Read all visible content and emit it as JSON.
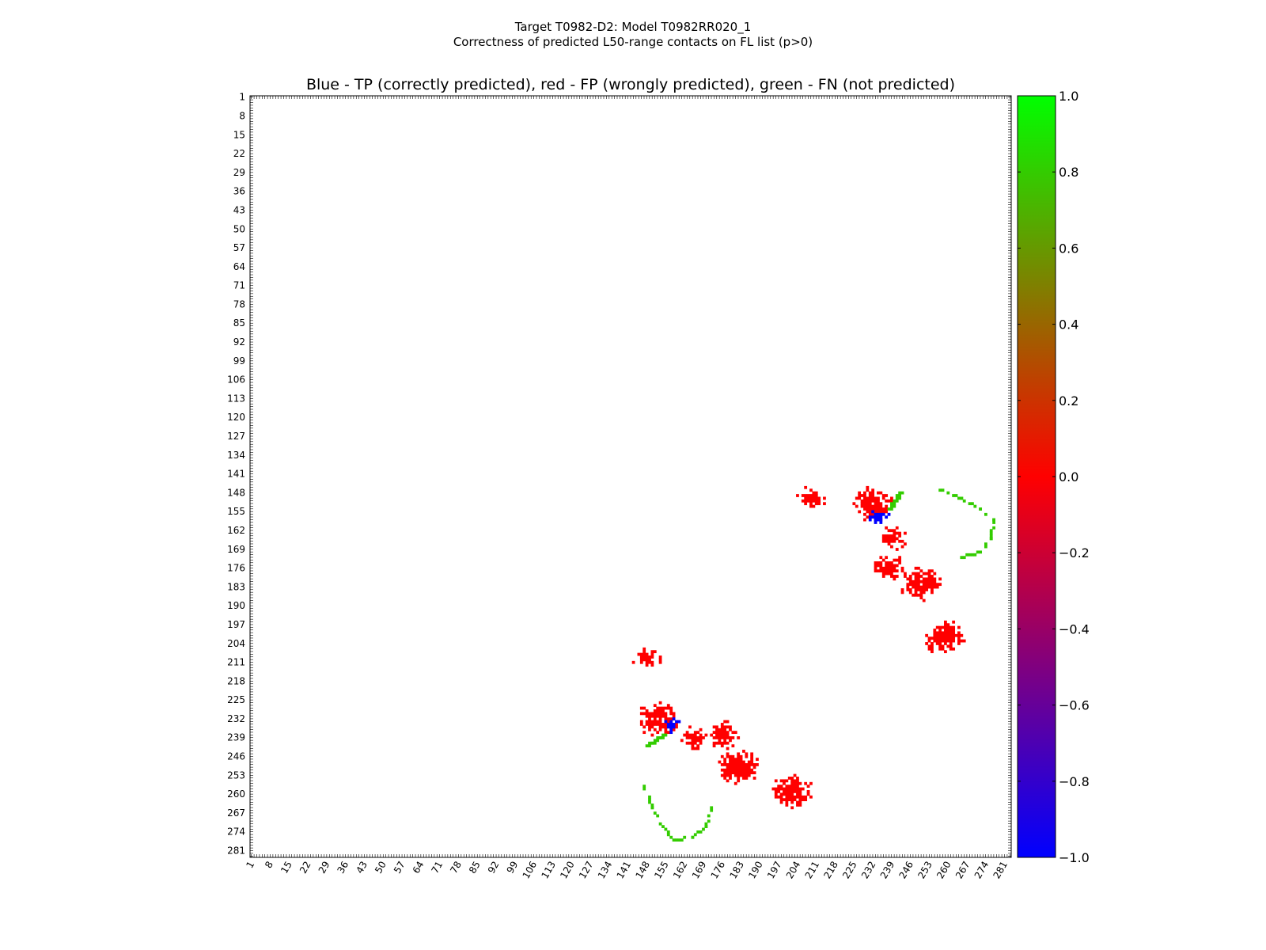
{
  "chart_data": {
    "type": "heatmap",
    "suptitle": [
      "Target T0982-D2: Model T0982RR020_1",
      "Correctness of predicted L50-range contacts on FL list (p>0)"
    ],
    "title": "Blue - TP (correctly predicted), red - FP (wrongly predicted), green - FN (not predicted)",
    "axis_range": [
      1,
      283
    ],
    "tick_labels": [
      "1",
      "8",
      "15",
      "22",
      "29",
      "36",
      "43",
      "50",
      "57",
      "64",
      "71",
      "78",
      "85",
      "92",
      "99",
      "106",
      "113",
      "120",
      "127",
      "134",
      "141",
      "148",
      "155",
      "162",
      "169",
      "176",
      "183",
      "190",
      "197",
      "204",
      "211",
      "218",
      "225",
      "232",
      "239",
      "246",
      "253",
      "260",
      "267",
      "274",
      "281"
    ],
    "tick_values": [
      1,
      8,
      15,
      22,
      29,
      36,
      43,
      50,
      57,
      64,
      71,
      78,
      85,
      92,
      99,
      106,
      113,
      120,
      127,
      134,
      141,
      148,
      155,
      162,
      169,
      176,
      183,
      190,
      197,
      204,
      211,
      218,
      225,
      232,
      239,
      246,
      253,
      260,
      267,
      274,
      281
    ],
    "colorbar": {
      "min": -1.0,
      "max": 1.0,
      "tick_labels": [
        "1.0",
        "0.8",
        "0.6",
        "0.4",
        "0.2",
        "0.0",
        "−0.2",
        "−0.4",
        "−0.6",
        "−0.8",
        "−1.0"
      ],
      "tick_values": [
        1.0,
        0.8,
        0.6,
        0.4,
        0.2,
        0.0,
        -0.2,
        -0.4,
        -0.6,
        -0.8,
        -1.0
      ],
      "colors": [
        "#0000ff",
        "#ff0000",
        "#00ff00"
      ]
    },
    "legend": {
      "TP": "#0000ff",
      "FP": "#ff0000",
      "FN": "#33cc00"
    },
    "clusters": [
      {
        "status": "FP",
        "center": [
          150,
          209
        ],
        "radius": 3
      },
      {
        "status": "FP",
        "center": [
          152,
          232
        ],
        "radius": 5
      },
      {
        "status": "TP",
        "center": [
          157,
          234
        ],
        "radius": 2
      },
      {
        "status": "FP",
        "center": [
          165,
          239
        ],
        "radius": 3
      },
      {
        "status": "FP",
        "center": [
          176,
          238
        ],
        "radius": 4
      },
      {
        "status": "FP",
        "center": [
          182,
          250
        ],
        "radius": 5
      },
      {
        "status": "FP",
        "center": [
          202,
          259
        ],
        "radius": 5
      },
      {
        "status": "FP",
        "center": [
          209,
          148
        ],
        "radius": 3
      },
      {
        "status": "FP",
        "center": [
          232,
          152
        ],
        "radius": 5
      },
      {
        "status": "TP",
        "center": [
          234,
          157
        ],
        "radius": 2
      },
      {
        "status": "FP",
        "center": [
          239,
          165
        ],
        "radius": 3
      },
      {
        "status": "FP",
        "center": [
          238,
          176
        ],
        "radius": 4
      },
      {
        "status": "FP",
        "center": [
          250,
          182
        ],
        "radius": 5
      },
      {
        "status": "FP",
        "center": [
          259,
          202
        ],
        "radius": 5
      }
    ],
    "fn_strands": [
      {
        "from": [
          148,
          242
        ],
        "to": [
          154,
          238
        ]
      },
      {
        "from": [
          242,
          148
        ],
        "to": [
          238,
          154
        ]
      }
    ],
    "fn_arcs": [
      {
        "points": [
          [
            147,
            257
          ],
          [
            150,
            265
          ],
          [
            154,
            272
          ],
          [
            158,
            277
          ],
          [
            165,
            276
          ],
          [
            170,
            272
          ],
          [
            172,
            265
          ]
        ]
      },
      {
        "points": [
          [
            257,
            147
          ],
          [
            265,
            150
          ],
          [
            272,
            154
          ],
          [
            277,
            158
          ],
          [
            276,
            165
          ],
          [
            272,
            170
          ],
          [
            265,
            172
          ]
        ]
      }
    ]
  }
}
